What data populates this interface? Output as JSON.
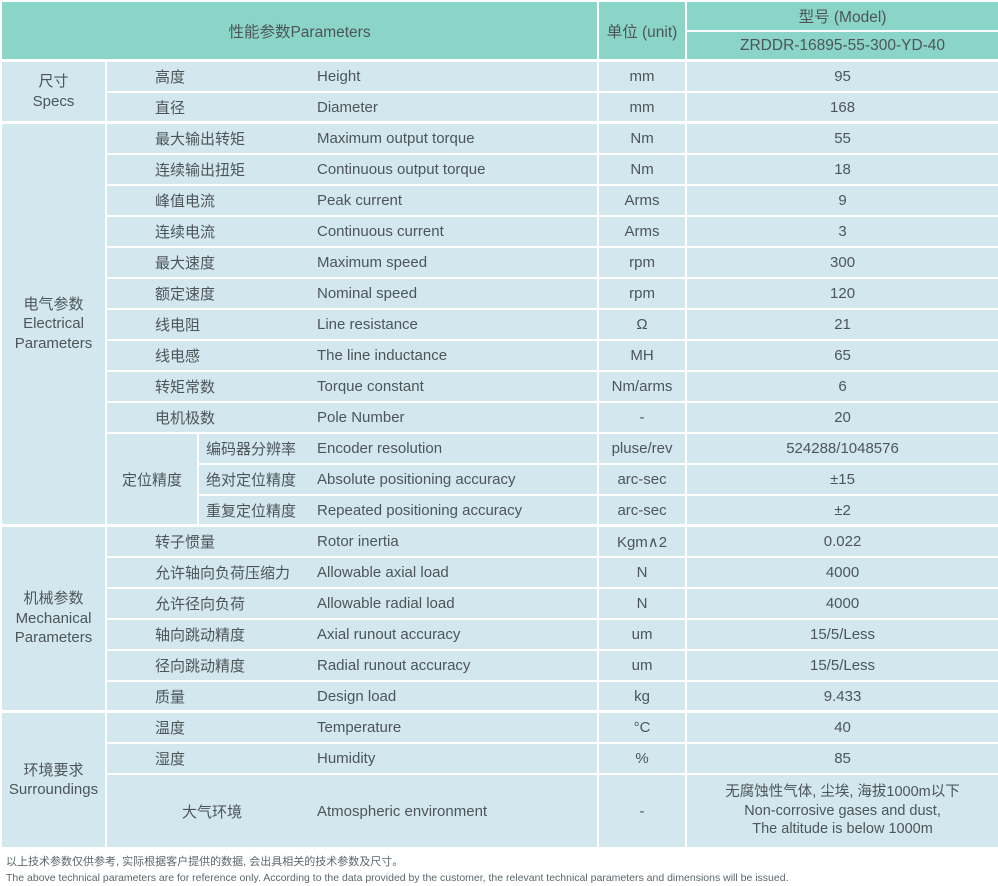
{
  "colors": {
    "header_teal": "#8bd4c8",
    "row_blue": "#d2e8ee",
    "grid_white": "#ffffff",
    "text_gray": "#4d5559"
  },
  "header": {
    "parameters_label": "性能参数Parameters",
    "unit_label": "单位 (unit)",
    "model_label": "型号 (Model)",
    "model_value": "ZRDDR-16895-55-300-YD-40"
  },
  "table": {
    "sections": [
      {
        "label_cn": "尺寸",
        "label_en": "Specs",
        "rows": [
          {
            "cn": "高度",
            "en": "Height",
            "unit": "mm",
            "value": "95"
          },
          {
            "cn": "直径",
            "en": "Diameter",
            "unit": "mm",
            "value": "168"
          }
        ]
      },
      {
        "label_cn": "电气参数",
        "label_en": "Electrical Parameters",
        "rows": [
          {
            "cn": "最大输出转矩",
            "en": "Maximum output torque",
            "unit": "Nm",
            "value": "55"
          },
          {
            "cn": "连续输出扭矩",
            "en": "Continuous output torque",
            "unit": "Nm",
            "value": "18"
          },
          {
            "cn": "峰值电流",
            "en": "Peak current",
            "unit": "Arms",
            "value": "9"
          },
          {
            "cn": "连续电流",
            "en": "Continuous current",
            "unit": "Arms",
            "value": "3"
          },
          {
            "cn": "最大速度",
            "en": "Maximum speed",
            "unit": "rpm",
            "value": "300"
          },
          {
            "cn": "额定速度",
            "en": "Nominal speed",
            "unit": "rpm",
            "value": "120"
          },
          {
            "cn": "线电阻",
            "en": "Line resistance",
            "unit": "Ω",
            "value": "21"
          },
          {
            "cn": "线电感",
            "en": "The line inductance",
            "unit": "MH",
            "value": "65"
          },
          {
            "cn": "转矩常数",
            "en": "Torque constant",
            "unit": "Nm/arms",
            "value": "6"
          },
          {
            "cn": "电机极数",
            "en": "Pole Number",
            "unit": "-",
            "value": "20"
          },
          {
            "cn": "编码器分辨率",
            "en": "Encoder resolution",
            "unit": "pluse/rev",
            "value": "524288/1048576",
            "subgroup_label": "定位精度",
            "subgroup_span": 3,
            "in_subgroup": true
          },
          {
            "cn": "绝对定位精度",
            "en": "Absolute positioning accuracy",
            "unit": "arc-sec",
            "value": "±15",
            "in_subgroup": true
          },
          {
            "cn": "重复定位精度",
            "en": "Repeated positioning accuracy",
            "unit": "arc-sec",
            "value": "±2",
            "in_subgroup": true
          }
        ]
      },
      {
        "label_cn": "机械参数",
        "label_en": "Mechanical Parameters",
        "rows": [
          {
            "cn": "转子惯量",
            "en": "Rotor inertia",
            "unit": "Kgm∧2",
            "value": "0.022"
          },
          {
            "cn": "允许轴向负荷压缩力",
            "en": "Allowable axial load",
            "unit": "N",
            "value": "4000"
          },
          {
            "cn": "允许径向负荷",
            "en": "Allowable radial load",
            "unit": "N",
            "value": "4000"
          },
          {
            "cn": "轴向跳动精度",
            "en": "Axial runout accuracy",
            "unit": "um",
            "value": "15/5/Less"
          },
          {
            "cn": "径向跳动精度",
            "en": "Radial runout accuracy",
            "unit": "um",
            "value": "15/5/Less"
          },
          {
            "cn": "质量",
            "en": "Design load",
            "unit": "kg",
            "value": "9.433"
          }
        ]
      },
      {
        "label_cn": "环境要求",
        "label_en": "Surroundings",
        "rows": [
          {
            "cn": "温度",
            "en": "Temperature",
            "unit": "°C",
            "value": "40"
          },
          {
            "cn": "湿度",
            "en": "Humidity",
            "unit": "%",
            "value": "85"
          },
          {
            "cn": "大气环境",
            "en": "Atmospheric environment",
            "unit": "-",
            "value_lines": [
              "无腐蚀性气体, 尘埃, 海拔1000m以下",
              "Non-corrosive gases and dust,",
              "The altitude is below 1000m"
            ],
            "tall": true,
            "center_cn": true
          }
        ]
      }
    ]
  },
  "footer": {
    "note_cn": "以上技术参数仅供参考, 实际根据客户提供的数据, 会出具相关的技术参数及尺寸。",
    "note_en": "The above technical parameters are for reference only. According to the data provided by the customer, the relevant technical parameters and dimensions will be issued."
  }
}
